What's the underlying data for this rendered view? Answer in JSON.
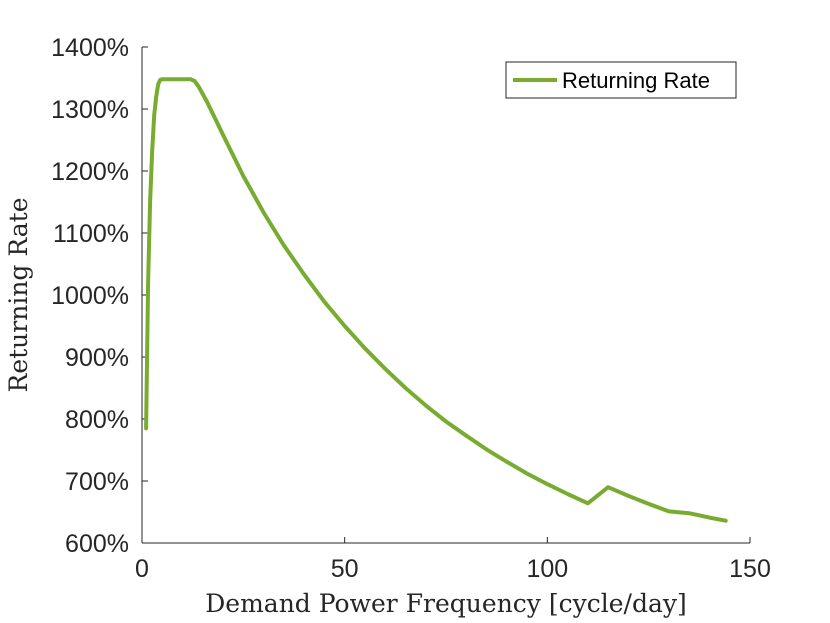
{
  "chart_data": {
    "type": "line",
    "xlabel": "Demand Power Frequency [cycle/day]",
    "ylabel": "Returning Rate",
    "xlim": [
      0,
      150
    ],
    "ylim": [
      600,
      1400
    ],
    "x_ticks": [
      0,
      50,
      100,
      150
    ],
    "y_ticks": [
      600,
      700,
      800,
      900,
      1000,
      1100,
      1200,
      1300,
      1400
    ],
    "y_tick_labels": [
      "600%",
      "700%",
      "800%",
      "900%",
      "1000%",
      "1100%",
      "1200%",
      "1300%",
      "1400%"
    ],
    "x_tick_labels": [
      "0",
      "50",
      "100",
      "150"
    ],
    "grid": false,
    "legend_position": "top-right",
    "series": [
      {
        "name": "Returning Rate",
        "color": "#77ac30",
        "x": [
          1,
          1.5,
          2,
          2.5,
          3,
          3.5,
          4,
          4.5,
          5,
          6,
          8,
          10,
          12,
          13,
          14,
          16,
          18,
          20,
          25,
          30,
          35,
          40,
          45,
          50,
          55,
          60,
          65,
          70,
          75,
          80,
          85,
          90,
          95,
          100,
          105,
          110,
          115,
          120,
          125,
          130,
          135,
          140,
          144
        ],
        "y": [
          785,
          1020,
          1150,
          1230,
          1290,
          1320,
          1340,
          1347,
          1348,
          1348,
          1348,
          1348,
          1348,
          1345,
          1336,
          1312,
          1285,
          1258,
          1192,
          1133,
          1080,
          1033,
          989,
          950,
          914,
          881,
          850,
          822,
          796,
          773,
          751,
          731,
          712,
          695,
          679,
          664,
          690,
          676,
          663,
          651,
          648,
          641,
          636
        ]
      }
    ]
  }
}
